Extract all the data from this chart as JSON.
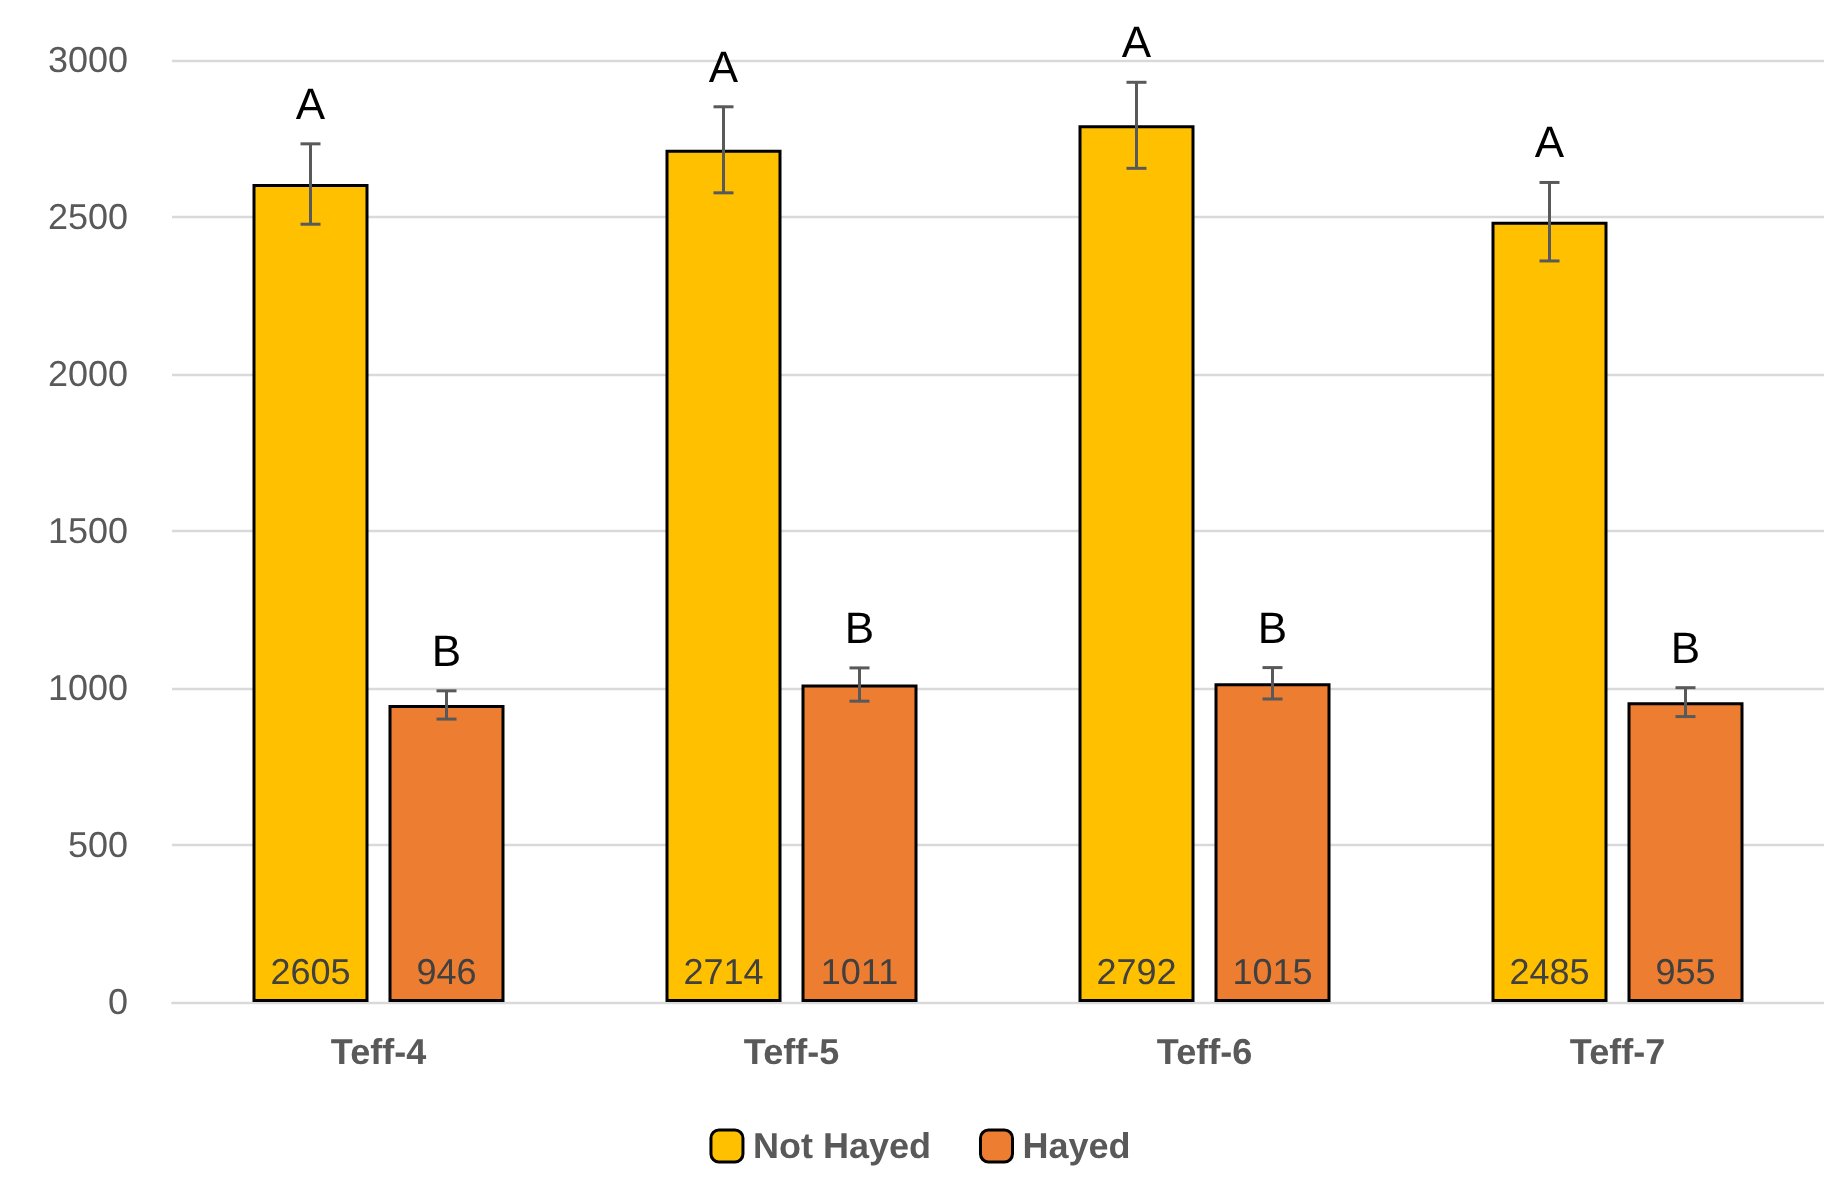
{
  "chart_data": {
    "type": "bar",
    "categories": [
      "Teff-4",
      "Teff-5",
      "Teff-6",
      "Teff-7"
    ],
    "series": [
      {
        "name": "Not Hayed",
        "color": "#ffc000",
        "values": [
          2605,
          2714,
          2792,
          2485
        ],
        "errors": [
          128,
          137,
          137,
          125
        ]
      },
      {
        "name": "Hayed",
        "color": "#ed7d31",
        "values": [
          946,
          1011,
          1015,
          955
        ],
        "errors": [
          45,
          53,
          50,
          46
        ]
      }
    ],
    "ylim": [
      0,
      3000
    ],
    "yticks": [
      0,
      500,
      1000,
      1500,
      2000,
      2500,
      3000
    ],
    "grid": "y",
    "legend": "bottom",
    "data_labels": true,
    "annotations": [
      "A",
      "A",
      "A",
      "A",
      "B",
      "B",
      "B",
      "B"
    ]
  }
}
